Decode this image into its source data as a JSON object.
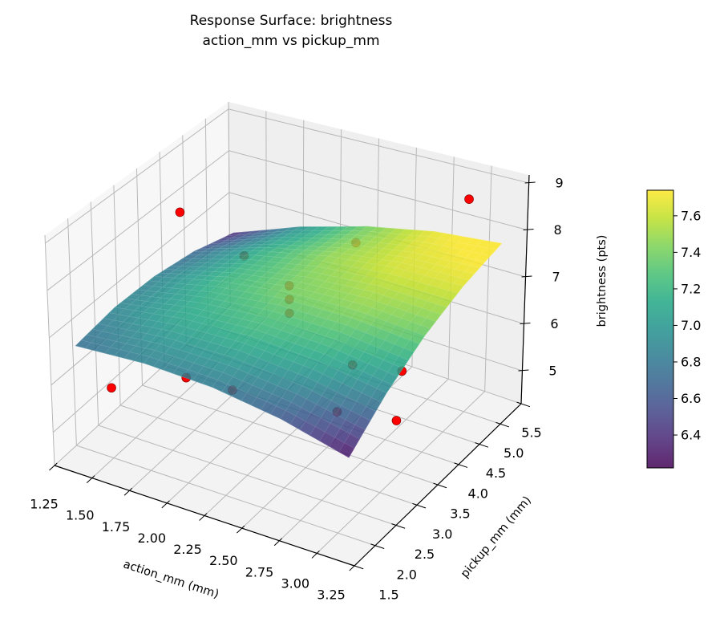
{
  "chart_data": {
    "type": "surface3d",
    "title": "Response Surface: brightness",
    "subtitle": "action_mm vs pickup_mm",
    "xlabel": "action_mm (mm)",
    "ylabel": "pickup_mm (mm)",
    "zlabel": "brightness (pts)",
    "xlim": [
      1.25,
      3.25
    ],
    "ylim": [
      1.5,
      5.5
    ],
    "zlim": [
      4.3,
      9.17
    ],
    "x_ticks": [
      "1.25",
      "1.50",
      "1.75",
      "2.00",
      "2.25",
      "2.50",
      "2.75",
      "3.00",
      "3.25"
    ],
    "y_ticks": [
      "1.5",
      "2.0",
      "2.5",
      "3.0",
      "3.5",
      "4.0",
      "4.5",
      "5.0",
      "5.5"
    ],
    "z_ticks": [
      "5",
      "6",
      "7",
      "8",
      "9"
    ],
    "grid": true,
    "colormap": "viridis",
    "surface": {
      "x": [
        1.35,
        1.8,
        2.25,
        2.7,
        3.15
      ],
      "y": [
        1.74,
        2.62,
        3.5,
        4.38,
        5.26
      ],
      "z": [
        [
          6.75,
          6.85,
          6.81,
          6.61,
          6.26
        ],
        [
          6.88,
          7.1,
          7.18,
          7.1,
          6.88
        ],
        [
          6.85,
          7.2,
          7.4,
          7.45,
          7.35
        ],
        [
          6.68,
          7.15,
          7.47,
          7.64,
          7.66
        ],
        [
          6.35,
          6.95,
          7.39,
          7.69,
          7.83
        ]
      ]
    },
    "points": {
      "color": "#ff0000",
      "x": [
        1.5,
        1.55,
        2.1,
        3.0,
        3.25,
        3.2,
        2.7,
        1.5,
        2.15,
        1.3,
        3.0,
        2.25,
        2.25,
        2.25
      ],
      "y": [
        2.0,
        3.5,
        2.7,
        2.0,
        2.5,
        2.8,
        3.4,
        5.0,
        5.35,
        4.25,
        5.0,
        3.5,
        3.5,
        3.5
      ],
      "z": [
        5.8,
        4.8,
        5.8,
        6.85,
        6.5,
        7.24,
        6.37,
        6.2,
        6.85,
        7.64,
        8.87,
        7.55,
        7.25,
        6.95
      ]
    },
    "colorbar": {
      "range": [
        6.22,
        7.74
      ],
      "ticks": [
        "6.4",
        "6.6",
        "6.8",
        "7.0",
        "7.2",
        "7.4",
        "7.6"
      ]
    }
  }
}
